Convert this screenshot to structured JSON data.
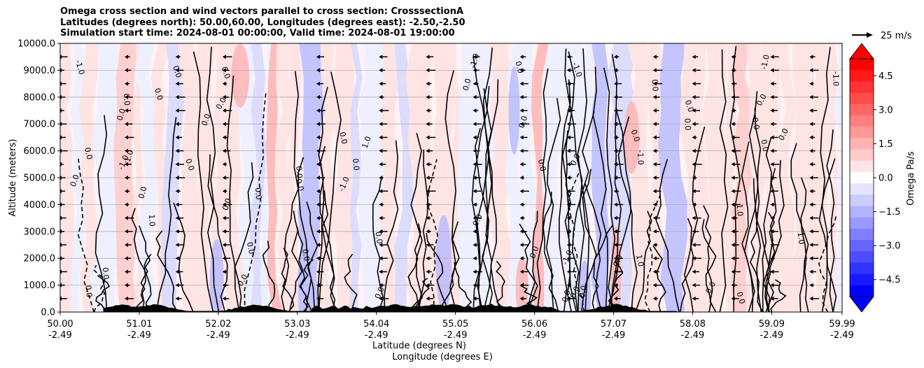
{
  "titles": [
    "Omega cross section and wind vectors parallel to cross section: CrosssectionA",
    "Latitudes (degrees north): 50.00,60.00, Longitudes (degrees east): -2.50,-2.50",
    "Simulation start time: 2024-08-01 00:00:00, Valid time: 2024-08-01 19:00:00"
  ],
  "chart_data": {
    "type": "contour",
    "title": "Omega cross section and wind vectors parallel to cross section: CrosssectionA",
    "ylabel": "Altitude (meters)",
    "xlabel_lines": [
      "Latitude (degrees N)",
      "Longitude (degrees E)"
    ],
    "ylim": [
      0,
      10000
    ],
    "yticks": [
      "0.0",
      "1000.0",
      "2000.0",
      "3000.0",
      "4000.0",
      "5000.0",
      "6000.0",
      "7000.0",
      "8000.0",
      "9000.0",
      "10000.0"
    ],
    "xlim": [
      50.0,
      59.99
    ],
    "xticks": [
      {
        "lat": "50.00",
        "lon": "-2.49"
      },
      {
        "lat": "51.01",
        "lon": "-2.49"
      },
      {
        "lat": "52.02",
        "lon": "-2.49"
      },
      {
        "lat": "53.03",
        "lon": "-2.49"
      },
      {
        "lat": "54.04",
        "lon": "-2.49"
      },
      {
        "lat": "55.05",
        "lon": "-2.49"
      },
      {
        "lat": "56.06",
        "lon": "-2.49"
      },
      {
        "lat": "57.07",
        "lon": "-2.49"
      },
      {
        "lat": "58.08",
        "lon": "-2.49"
      },
      {
        "lat": "59.09",
        "lon": "-2.49"
      },
      {
        "lat": "59.99",
        "lon": "-2.49"
      }
    ],
    "grid": "horizontal",
    "colorbar": {
      "label": "Omega Pa/s",
      "range": [
        -5.25,
        5.25
      ],
      "ticks": [
        "4.5",
        "3.0",
        "1.5",
        "0.0",
        "−1.5",
        "−3.0",
        "−4.5"
      ],
      "colormap": "bwr",
      "extend": "both"
    },
    "quiver_key": "25 m/s",
    "contour_labels": [
      "0.0",
      "-1.0",
      "1.0"
    ],
    "terrain_peak_lats": [
      50.8,
      51.2,
      52.5,
      54.3,
      54.8,
      55.0,
      55.5,
      56.0,
      57.1
    ]
  },
  "colors": {
    "positive": "#ff0000",
    "negative": "#0000ff",
    "grid": "#b0b0b0",
    "contour": "#000000"
  }
}
